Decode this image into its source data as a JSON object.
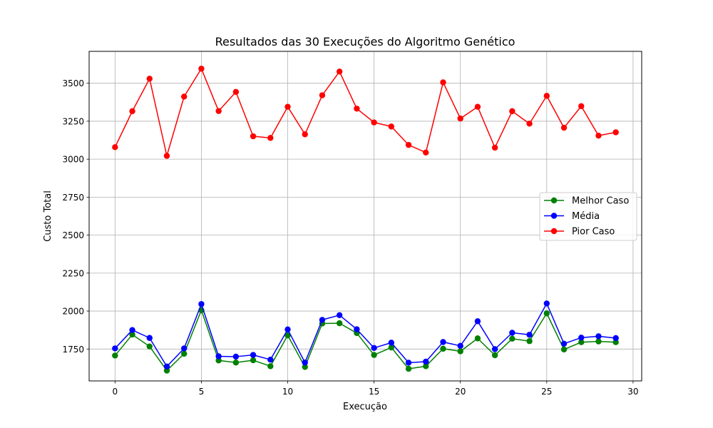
{
  "chart_data": {
    "type": "line",
    "title": "Resultados das 30 Execuções do Algoritmo Genético",
    "xlabel": "Execução",
    "ylabel": "Custo Total",
    "xlim": [
      -1.5,
      30.5
    ],
    "ylim": [
      1540,
      3710
    ],
    "xticks": [
      0,
      5,
      10,
      15,
      20,
      25,
      30
    ],
    "yticks": [
      1750,
      2000,
      2250,
      2500,
      2750,
      3000,
      3250,
      3500
    ],
    "grid": true,
    "legend_position": "center-right",
    "x": [
      0,
      1,
      2,
      3,
      4,
      5,
      6,
      7,
      8,
      9,
      10,
      11,
      12,
      13,
      14,
      15,
      16,
      17,
      18,
      19,
      20,
      21,
      22,
      23,
      24,
      25,
      26,
      27,
      28,
      29
    ],
    "series": [
      {
        "name": "Melhor Caso",
        "color": "#008000",
        "marker": "circle",
        "values": [
          1707,
          1845,
          1767,
          1608,
          1719,
          2006,
          1675,
          1661,
          1676,
          1637,
          1840,
          1632,
          1918,
          1920,
          1855,
          1711,
          1760,
          1620,
          1637,
          1752,
          1735,
          1820,
          1709,
          1818,
          1802,
          1985,
          1747,
          1795,
          1800,
          1795
        ]
      },
      {
        "name": "Média",
        "color": "#0000ff",
        "marker": "circle",
        "values": [
          1754,
          1875,
          1823,
          1635,
          1754,
          2046,
          1702,
          1700,
          1711,
          1680,
          1879,
          1661,
          1942,
          1973,
          1880,
          1757,
          1792,
          1660,
          1667,
          1796,
          1771,
          1933,
          1749,
          1857,
          1844,
          2050,
          1785,
          1825,
          1834,
          1822
        ]
      },
      {
        "name": "Pior Caso",
        "color": "#ff0000",
        "marker": "circle",
        "values": [
          3079,
          3316,
          3530,
          3022,
          3412,
          3596,
          3317,
          3443,
          3151,
          3140,
          3345,
          3164,
          3421,
          3577,
          3333,
          3242,
          3215,
          3094,
          3044,
          3506,
          3268,
          3345,
          3076,
          3316,
          3234,
          3417,
          3207,
          3349,
          3155,
          3177
        ]
      }
    ]
  }
}
